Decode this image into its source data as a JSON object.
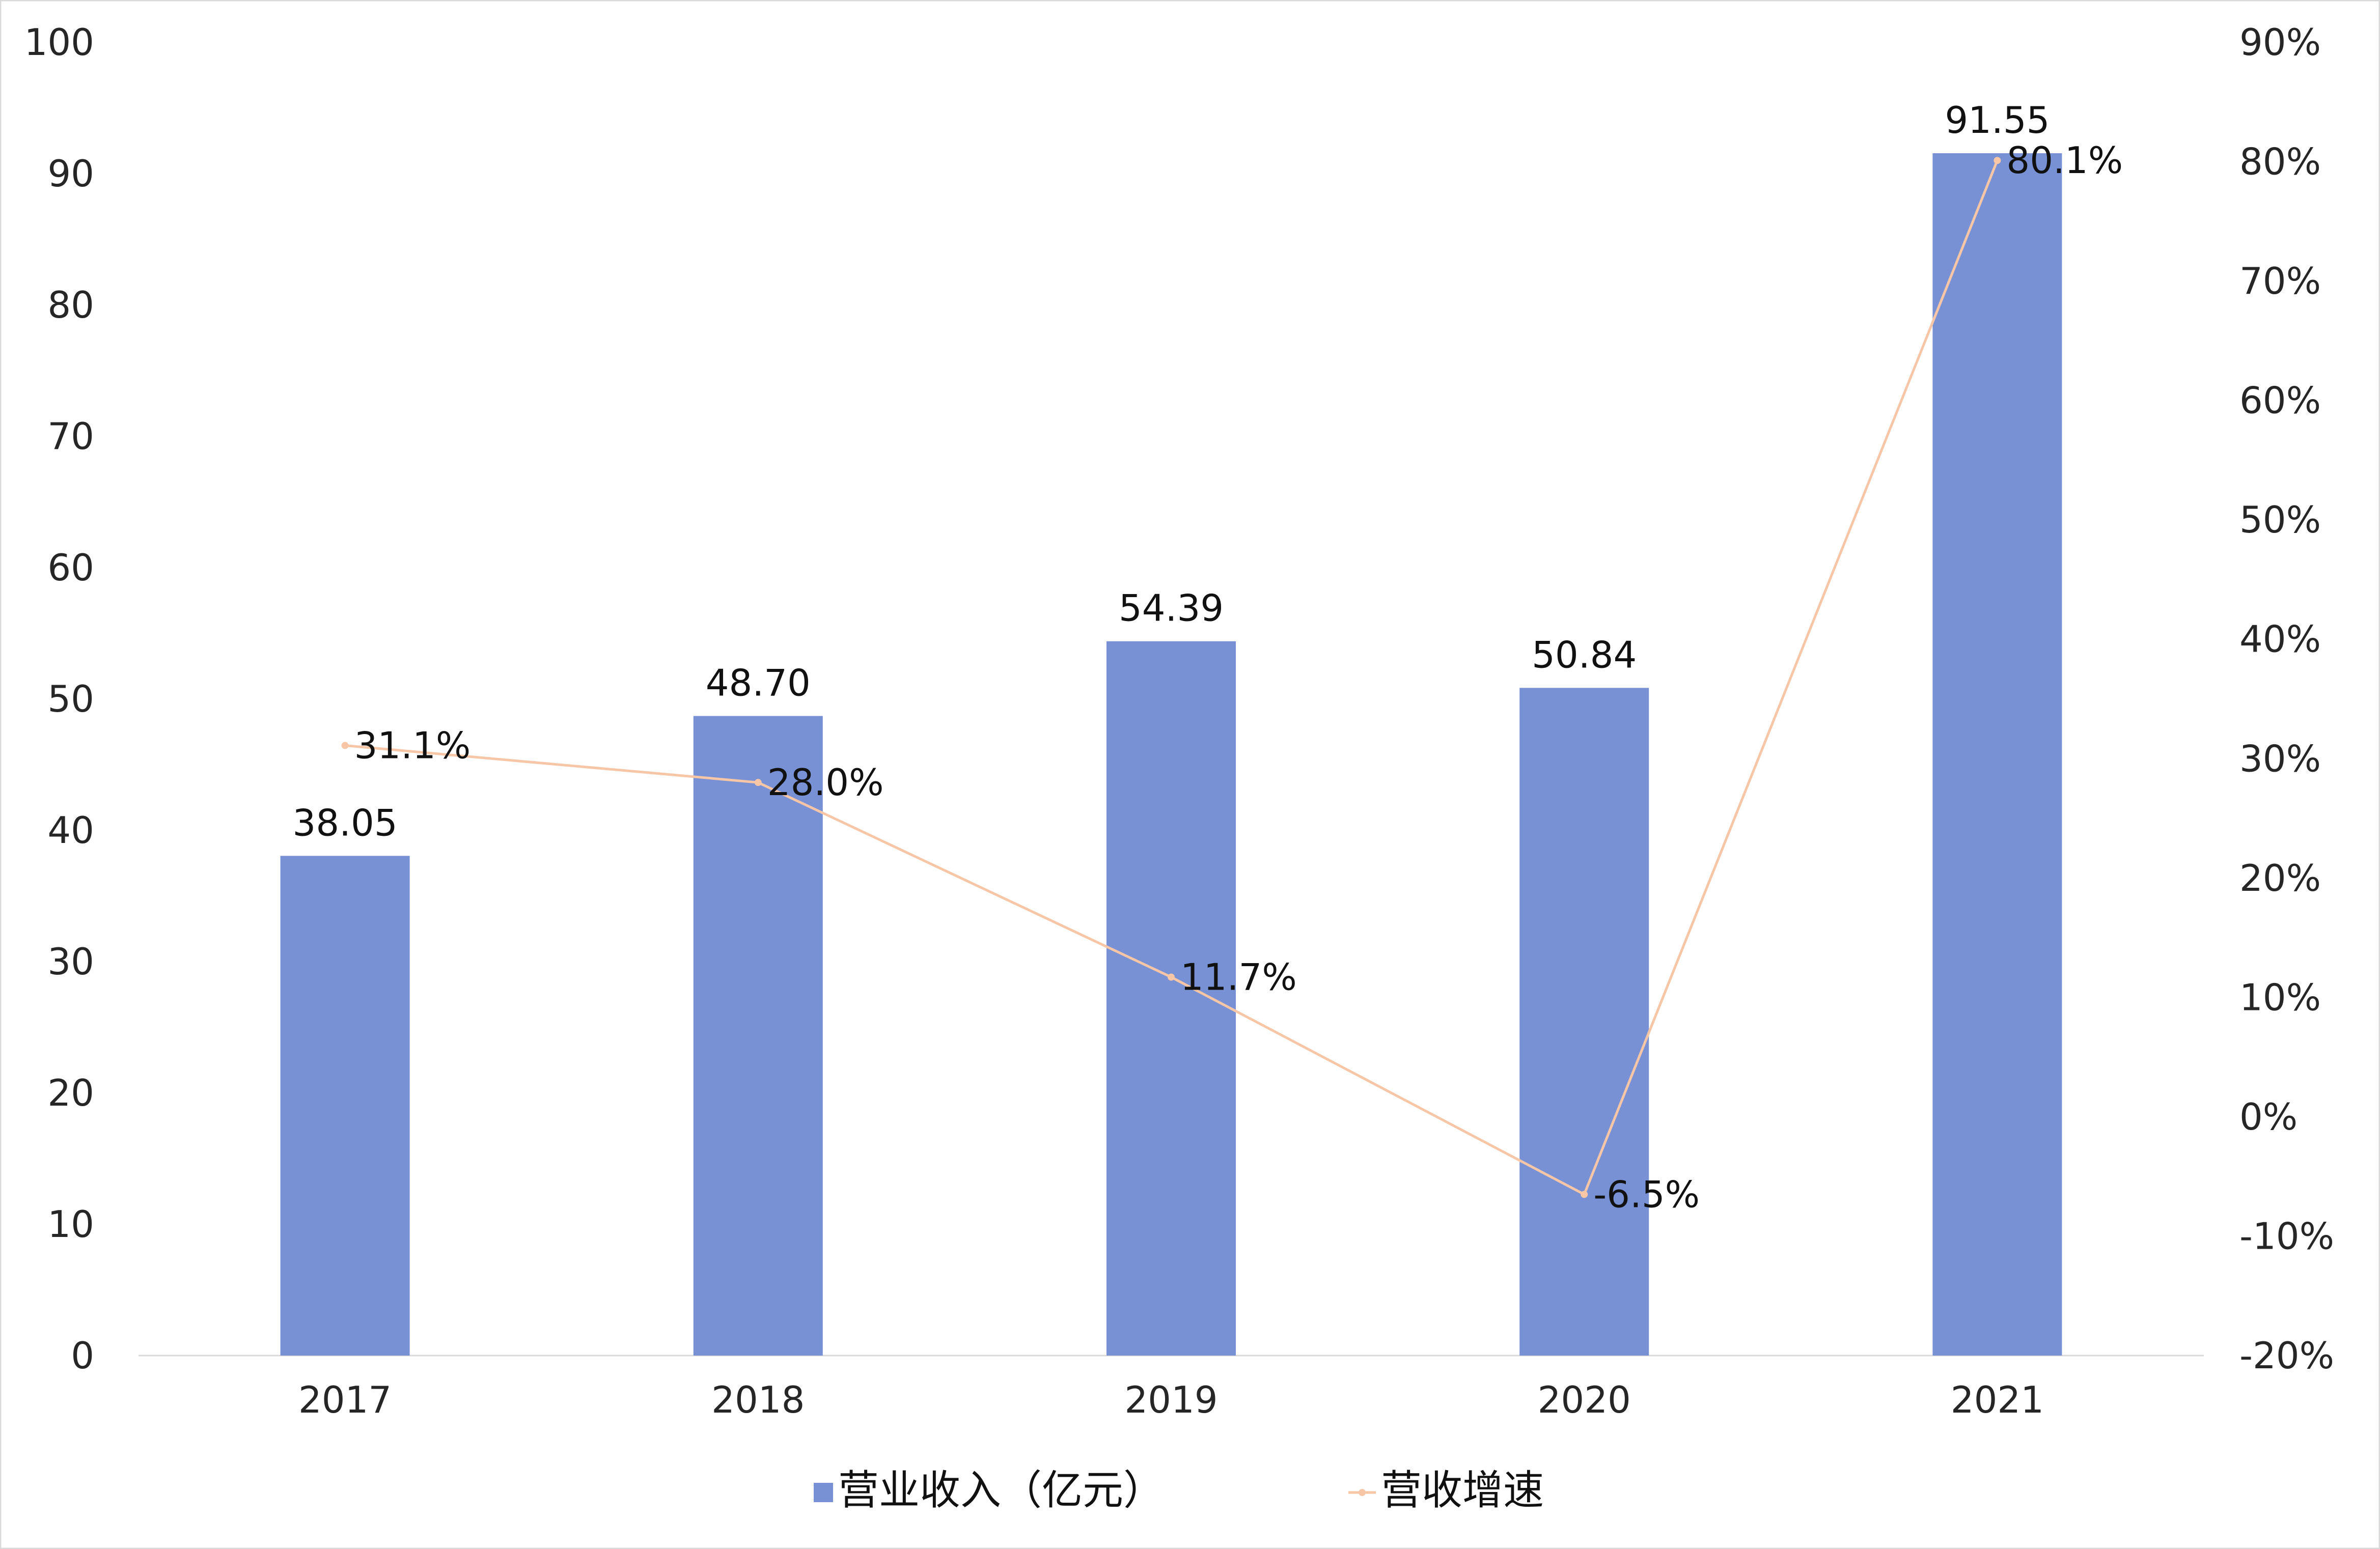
{
  "chart_data": {
    "type": "bar",
    "categories": [
      "2017",
      "2018",
      "2019",
      "2020",
      "2021"
    ],
    "series": [
      {
        "name": "营业收入（亿元）",
        "kind": "bar",
        "axis": "left",
        "color": "#7891d4",
        "values": [
          38.05,
          48.7,
          54.39,
          50.84,
          91.55
        ],
        "labels": [
          "38.05",
          "48.70",
          "54.39",
          "50.84",
          "91.55"
        ]
      },
      {
        "name": "营收增速",
        "kind": "line",
        "axis": "right",
        "color": "#f6c6a6",
        "values": [
          31.1,
          28.0,
          11.7,
          -6.5,
          80.1
        ],
        "labels": [
          "31.1%",
          "28.0%",
          "11.7%",
          "-6.5%",
          "80.1%"
        ]
      }
    ],
    "y_left": {
      "range": [
        0,
        100
      ],
      "ticks": [
        "0",
        "10",
        "20",
        "30",
        "40",
        "50",
        "60",
        "70",
        "80",
        "90",
        "100"
      ]
    },
    "y_right": {
      "range": [
        -20,
        90
      ],
      "ticks": [
        "-20%",
        "-10%",
        "0%",
        "10%",
        "20%",
        "30%",
        "40%",
        "50%",
        "60%",
        "70%",
        "80%",
        "90%"
      ]
    },
    "grid": false,
    "legend_position": "bottom"
  }
}
